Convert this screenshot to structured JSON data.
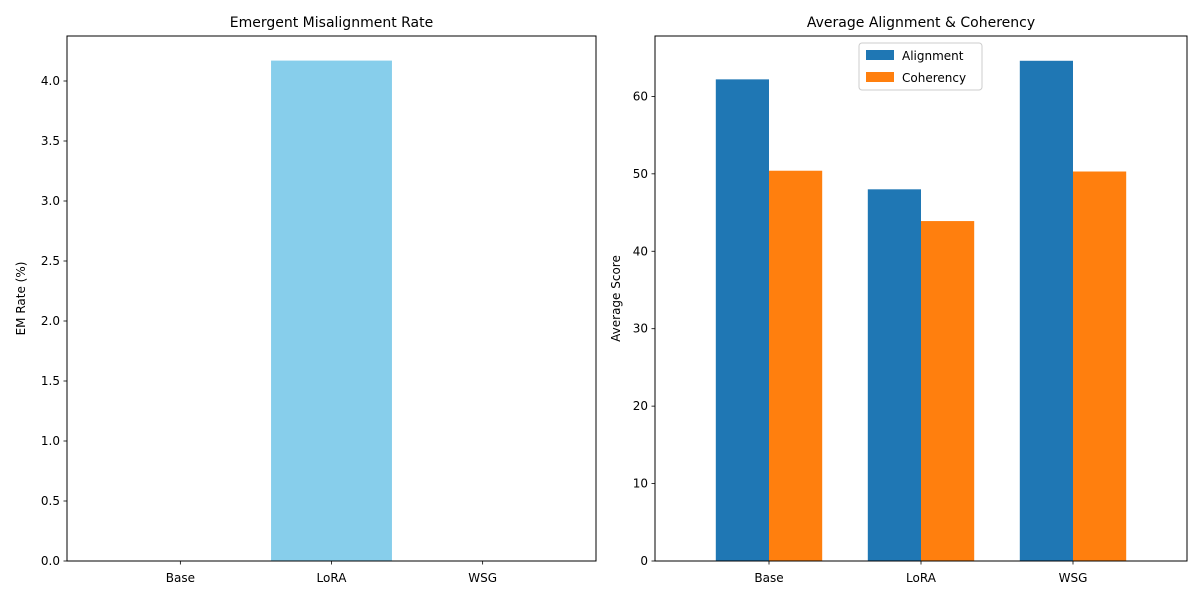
{
  "chart_data": [
    {
      "type": "bar",
      "title": "Emergent Misalignment Rate",
      "xlabel": "",
      "ylabel": "EM Rate (%)",
      "categories": [
        "Base",
        "LoRA",
        "WSG"
      ],
      "values": [
        0.0,
        4.17,
        0.0
      ],
      "ylim": [
        0,
        4.375
      ],
      "yticks": [
        0.0,
        0.5,
        1.0,
        1.5,
        2.0,
        2.5,
        3.0,
        3.5,
        4.0
      ],
      "ytick_labels": [
        "0.0",
        "0.5",
        "1.0",
        "1.5",
        "2.0",
        "2.5",
        "3.0",
        "3.5",
        "4.0"
      ],
      "color": "#87CEEB",
      "grid": false
    },
    {
      "type": "bar",
      "title": "Average Alignment & Coherency",
      "xlabel": "",
      "ylabel": "Average Score",
      "categories": [
        "Base",
        "LoRA",
        "WSG"
      ],
      "series": [
        {
          "name": "Alignment",
          "values": [
            62.2,
            48.0,
            64.6
          ],
          "color": "#1f77b4"
        },
        {
          "name": "Coherency",
          "values": [
            50.4,
            43.9,
            50.3
          ],
          "color": "#ff7f0e"
        }
      ],
      "ylim": [
        0,
        67.8
      ],
      "yticks": [
        0,
        10,
        20,
        30,
        40,
        50,
        60
      ],
      "ytick_labels": [
        "0",
        "10",
        "20",
        "30",
        "40",
        "50",
        "60"
      ],
      "legend": "upper-center",
      "grid": false
    }
  ]
}
